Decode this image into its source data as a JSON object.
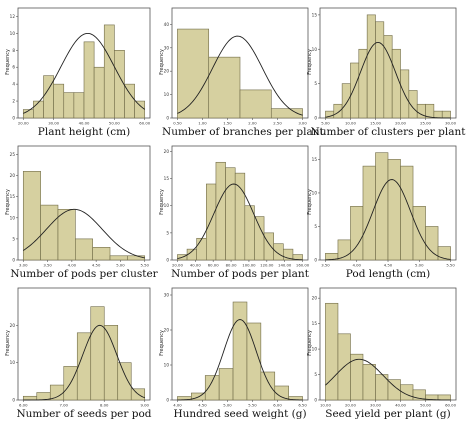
{
  "style": {
    "bar_fill": "#d6d0a0",
    "bar_stroke": "#6f6a46",
    "curve": "#222222",
    "frame": "#555555"
  },
  "chart_data": [
    {
      "type": "bar",
      "xlabel": "Plant height (cm)",
      "ylabel": "Frequency",
      "yticks": [
        0,
        2,
        4,
        6,
        8,
        10,
        12
      ],
      "ylim": [
        0,
        13
      ],
      "xticks": [
        "20.00",
        "30.00",
        "40.00",
        "50.00",
        "60.00"
      ],
      "values": [
        1,
        2,
        5,
        4,
        3,
        3,
        9,
        6,
        11,
        8,
        4,
        2
      ],
      "curve": {
        "mean": 0.53,
        "sd": 0.22,
        "peak": 10
      }
    },
    {
      "type": "bar",
      "xlabel": "Number of branches per plant",
      "ylabel": "Frequency",
      "yticks": [
        0,
        10,
        20,
        30,
        40
      ],
      "ylim": [
        0,
        47
      ],
      "xticks": [
        "0.50",
        "1.00",
        "1.50",
        "2.00",
        "2.50",
        "3.00"
      ],
      "values": [
        38,
        26,
        12,
        4
      ],
      "curve": {
        "mean": 0.48,
        "sd": 0.2,
        "peak": 35
      }
    },
    {
      "type": "bar",
      "xlabel": "Number of clusters per plant",
      "ylabel": "Frequency",
      "yticks": [
        0,
        5,
        10,
        15
      ],
      "ylim": [
        0,
        16
      ],
      "xticks": [
        "5.00",
        "10.00",
        "15.00",
        "20.00",
        "25.00",
        "30.00"
      ],
      "values": [
        1,
        2,
        5,
        8,
        10,
        15,
        14,
        12,
        10,
        7,
        4,
        2,
        2,
        1,
        1
      ],
      "curve": {
        "mean": 0.42,
        "sd": 0.14,
        "peak": 11
      }
    },
    {
      "type": "bar",
      "xlabel": "Number of pods per cluster",
      "ylabel": "Frequency",
      "yticks": [
        0,
        5,
        10,
        15,
        20,
        25
      ],
      "ylim": [
        0,
        27
      ],
      "xticks": [
        "3.00",
        "3.50",
        "4.00",
        "4.50",
        "5.00",
        "5.50"
      ],
      "values": [
        21,
        13,
        12,
        5,
        3,
        1,
        1
      ],
      "curve": {
        "mean": 0.42,
        "sd": 0.23,
        "peak": 12
      }
    },
    {
      "type": "bar",
      "xlabel": "Number of pods per plant",
      "ylabel": "Frequency",
      "yticks": [
        0,
        5,
        10,
        15,
        20
      ],
      "ylim": [
        0,
        21
      ],
      "xticks": [
        "20.00",
        "40.00",
        "60.00",
        "80.00",
        "100.00",
        "120.00",
        "140.00",
        "160.00"
      ],
      "values": [
        1,
        2,
        4,
        14,
        18,
        17,
        16,
        10,
        8,
        5,
        3,
        2,
        1
      ],
      "curve": {
        "mean": 0.45,
        "sd": 0.16,
        "peak": 14
      }
    },
    {
      "type": "bar",
      "xlabel": "Pod length (cm)",
      "ylabel": "Frequency",
      "yticks": [
        0,
        5,
        10,
        15
      ],
      "ylim": [
        0,
        17
      ],
      "xticks": [
        "3.50",
        "4.00",
        "4.50",
        "5.00",
        "5.50"
      ],
      "values": [
        1,
        3,
        8,
        14,
        16,
        15,
        14,
        8,
        5,
        2
      ],
      "curve": {
        "mean": 0.53,
        "sd": 0.15,
        "peak": 12
      }
    },
    {
      "type": "bar",
      "xlabel": "Number of seeds per pod",
      "ylabel": "Frequency",
      "yticks": [
        0,
        10,
        20
      ],
      "ylim": [
        0,
        30
      ],
      "xticks": [
        "6.00",
        "7.00",
        "8.00",
        "9.00"
      ],
      "values": [
        1,
        2,
        4,
        9,
        18,
        25,
        20,
        10,
        3
      ],
      "curve": {
        "mean": 0.63,
        "sd": 0.14,
        "peak": 20
      }
    },
    {
      "type": "bar",
      "xlabel": "Hundred seed weight (g)",
      "ylabel": "Frequency",
      "yticks": [
        0,
        10,
        20,
        30
      ],
      "ylim": [
        0,
        32
      ],
      "xticks": [
        "4.00",
        "4.50",
        "5.00",
        "5.50",
        "6.00",
        "6.50"
      ],
      "values": [
        1,
        2,
        7,
        9,
        28,
        22,
        8,
        4,
        1
      ],
      "curve": {
        "mean": 0.5,
        "sd": 0.13,
        "peak": 23
      }
    },
    {
      "type": "bar",
      "xlabel": "Seed yield per plant (g)",
      "ylabel": "Frequency",
      "yticks": [
        0,
        5,
        10,
        15,
        20
      ],
      "ylim": [
        0,
        22
      ],
      "xticks": [
        "10.00",
        "20.00",
        "30.00",
        "40.00",
        "50.00",
        "60.00"
      ],
      "values": [
        19,
        13,
        9,
        7,
        5,
        4,
        3,
        2,
        1,
        1
      ],
      "curve": {
        "mean": 0.27,
        "sd": 0.19,
        "peak": 8
      }
    }
  ]
}
